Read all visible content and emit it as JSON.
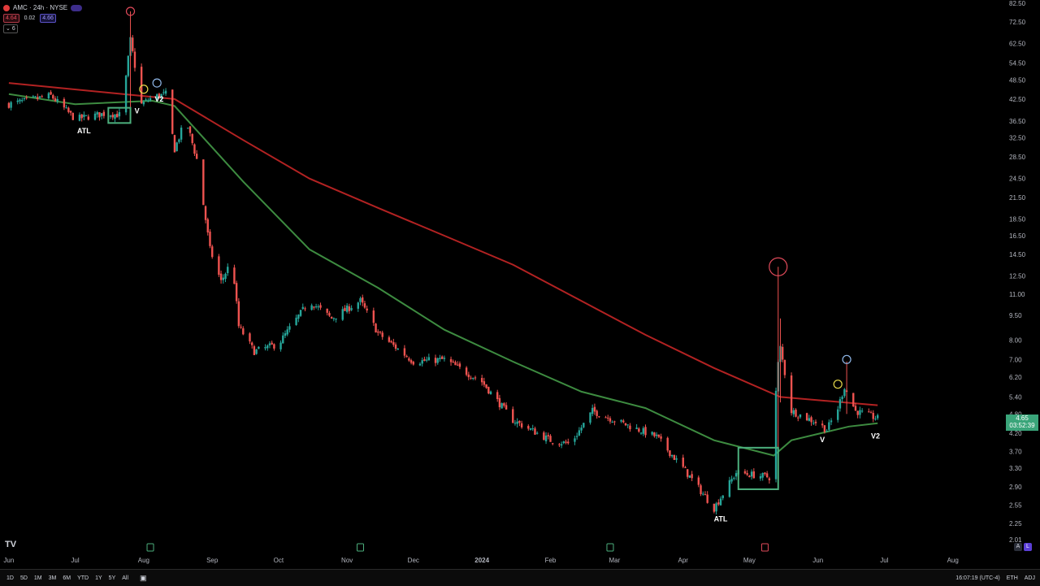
{
  "legend": {
    "symbol": "AMC · 24h · NYSE",
    "bid": "4.64",
    "spread": "0.02",
    "ask": "4.66",
    "indicator_count": "6"
  },
  "last_price": {
    "value": "4.65",
    "countdown": "03:52:39"
  },
  "bottom": {
    "ranges": [
      "1D",
      "5D",
      "1M",
      "3M",
      "6M",
      "YTD",
      "1Y",
      "5Y",
      "All"
    ],
    "time": "16:07:19 (UTC-4)",
    "session": "ETH",
    "adj": "ADJ"
  },
  "axis_buttons": {
    "auto": "A",
    "log": "L"
  },
  "logo": "TV",
  "colors": {
    "up": "#26a69a",
    "down": "#ef5350",
    "ma_fast": "#3d8b40",
    "ma_slow": "#b22222",
    "box": "#4caf7d"
  },
  "chart_data": {
    "type": "candlestick",
    "scale": "log",
    "y_ticks": [
      82.5,
      72.5,
      62.5,
      54.5,
      48.5,
      42.5,
      36.5,
      32.5,
      28.5,
      24.5,
      21.5,
      18.5,
      16.5,
      14.5,
      12.5,
      11.0,
      9.5,
      8.0,
      7.0,
      6.2,
      5.4,
      4.8,
      4.2,
      3.7,
      3.3,
      2.9,
      2.55,
      2.25,
      2.01
    ],
    "x_labels": [
      "Jun",
      "Jul",
      "Aug",
      "Sep",
      "Oct",
      "Nov",
      "Dec",
      "2024",
      "Feb",
      "Mar",
      "Apr",
      "May",
      "Jun",
      "Jul",
      "Aug"
    ],
    "price_series": [
      {
        "date": "2023-06-01",
        "close": 41
      },
      {
        "date": "2023-06-20",
        "close": 43.5
      },
      {
        "date": "2023-07-01",
        "close": 37
      },
      {
        "date": "2023-07-15",
        "close": 38.5
      },
      {
        "date": "2023-07-22",
        "close": 38
      },
      {
        "date": "2023-07-26",
        "close": 64
      },
      {
        "date": "2023-07-31",
        "close": 41
      },
      {
        "date": "2023-08-05",
        "close": 43
      },
      {
        "date": "2023-08-11",
        "close": 44
      },
      {
        "date": "2023-08-15",
        "close": 30
      },
      {
        "date": "2023-08-20",
        "close": 37
      },
      {
        "date": "2023-08-25",
        "close": 28
      },
      {
        "date": "2023-08-31",
        "close": 15
      },
      {
        "date": "2023-09-05",
        "close": 12
      },
      {
        "date": "2023-09-10",
        "close": 14
      },
      {
        "date": "2023-09-13",
        "close": 8.8
      },
      {
        "date": "2023-09-20",
        "close": 7.4
      },
      {
        "date": "2023-10-01",
        "close": 7.8
      },
      {
        "date": "2023-10-15",
        "close": 10.5
      },
      {
        "date": "2023-10-25",
        "close": 9.3
      },
      {
        "date": "2023-11-07",
        "close": 10.5
      },
      {
        "date": "2023-11-15",
        "close": 8.4
      },
      {
        "date": "2023-12-01",
        "close": 6.9
      },
      {
        "date": "2023-12-15",
        "close": 7.0
      },
      {
        "date": "2024-01-01",
        "close": 6.0
      },
      {
        "date": "2024-01-15",
        "close": 4.6
      },
      {
        "date": "2024-02-01",
        "close": 4.0
      },
      {
        "date": "2024-02-10",
        "close": 3.9
      },
      {
        "date": "2024-02-20",
        "close": 4.9
      },
      {
        "date": "2024-03-01",
        "close": 4.6
      },
      {
        "date": "2024-03-20",
        "close": 4.1
      },
      {
        "date": "2024-04-01",
        "close": 3.3
      },
      {
        "date": "2024-04-15",
        "close": 2.5
      },
      {
        "date": "2024-04-25",
        "close": 3.2
      },
      {
        "date": "2024-05-10",
        "close": 3.1
      },
      {
        "date": "2024-05-14",
        "close": 6.8
      },
      {
        "date": "2024-05-15",
        "close": 7.6
      },
      {
        "date": "2024-05-20",
        "close": 4.9
      },
      {
        "date": "2024-06-01",
        "close": 4.5
      },
      {
        "date": "2024-06-05",
        "close": 4.3
      },
      {
        "date": "2024-06-10",
        "close": 5.0
      },
      {
        "date": "2024-06-13",
        "close": 5.8
      },
      {
        "date": "2024-06-18",
        "close": 4.9
      },
      {
        "date": "2024-06-28",
        "close": 4.65
      }
    ],
    "ma_fast": [
      {
        "date": "2023-06-01",
        "value": 44
      },
      {
        "date": "2023-07-01",
        "value": 41
      },
      {
        "date": "2023-08-05",
        "value": 42
      },
      {
        "date": "2023-08-15",
        "value": 40.5
      },
      {
        "date": "2023-09-15",
        "value": 24
      },
      {
        "date": "2023-10-15",
        "value": 15
      },
      {
        "date": "2023-11-15",
        "value": 11.5
      },
      {
        "date": "2023-12-15",
        "value": 8.6
      },
      {
        "date": "2024-01-15",
        "value": 6.9
      },
      {
        "date": "2024-02-15",
        "value": 5.6
      },
      {
        "date": "2024-03-15",
        "value": 5.0
      },
      {
        "date": "2024-04-15",
        "value": 4.0
      },
      {
        "date": "2024-05-12",
        "value": 3.6
      },
      {
        "date": "2024-05-20",
        "value": 4.0
      },
      {
        "date": "2024-06-15",
        "value": 4.4
      },
      {
        "date": "2024-06-28",
        "value": 4.5
      }
    ],
    "ma_slow": [
      {
        "date": "2023-06-01",
        "value": 47.5
      },
      {
        "date": "2023-07-15",
        "value": 44.5
      },
      {
        "date": "2023-08-15",
        "value": 42.5
      },
      {
        "date": "2023-09-15",
        "value": 32
      },
      {
        "date": "2023-10-15",
        "value": 24.5
      },
      {
        "date": "2023-11-15",
        "value": 20
      },
      {
        "date": "2023-12-15",
        "value": 16.5
      },
      {
        "date": "2024-01-15",
        "value": 13.5
      },
      {
        "date": "2024-02-15",
        "value": 10.5
      },
      {
        "date": "2024-03-15",
        "value": 8.3
      },
      {
        "date": "2024-04-15",
        "value": 6.6
      },
      {
        "date": "2024-05-15",
        "value": 5.4
      },
      {
        "date": "2024-06-28",
        "value": 5.1
      }
    ],
    "annotations": {
      "labels": [
        {
          "text": "ATL",
          "date": "2023-07-05",
          "price": 33.5
        },
        {
          "text": "V",
          "date": "2023-07-29",
          "price": 38.5
        },
        {
          "text": "V2",
          "date": "2023-08-08",
          "price": 41.8
        },
        {
          "text": "ATL",
          "date": "2024-04-18",
          "price": 2.28
        },
        {
          "text": "V",
          "date": "2024-06-03",
          "price": 3.95
        },
        {
          "text": "V2",
          "date": "2024-06-27",
          "price": 4.05
        }
      ],
      "circles": [
        {
          "date": "2023-07-26",
          "price": 78,
          "color": "#e04a5a"
        },
        {
          "date": "2023-08-01",
          "price": 45.5,
          "color": "#e6d84a"
        },
        {
          "date": "2023-08-07",
          "price": 47.5,
          "color": "#8fb7e8"
        },
        {
          "date": "2024-05-14",
          "price": 13.3,
          "color": "#e04a5a"
        },
        {
          "date": "2024-06-10",
          "price": 5.9,
          "color": "#e6d84a"
        },
        {
          "date": "2024-06-14",
          "price": 7.0,
          "color": "#8fb7e8"
        }
      ],
      "boxes": [
        {
          "from": "2023-07-16",
          "to": "2023-07-26",
          "low": 36,
          "high": 40
        },
        {
          "from": "2024-04-26",
          "to": "2024-05-14",
          "low": 2.85,
          "high": 3.8
        }
      ]
    }
  }
}
